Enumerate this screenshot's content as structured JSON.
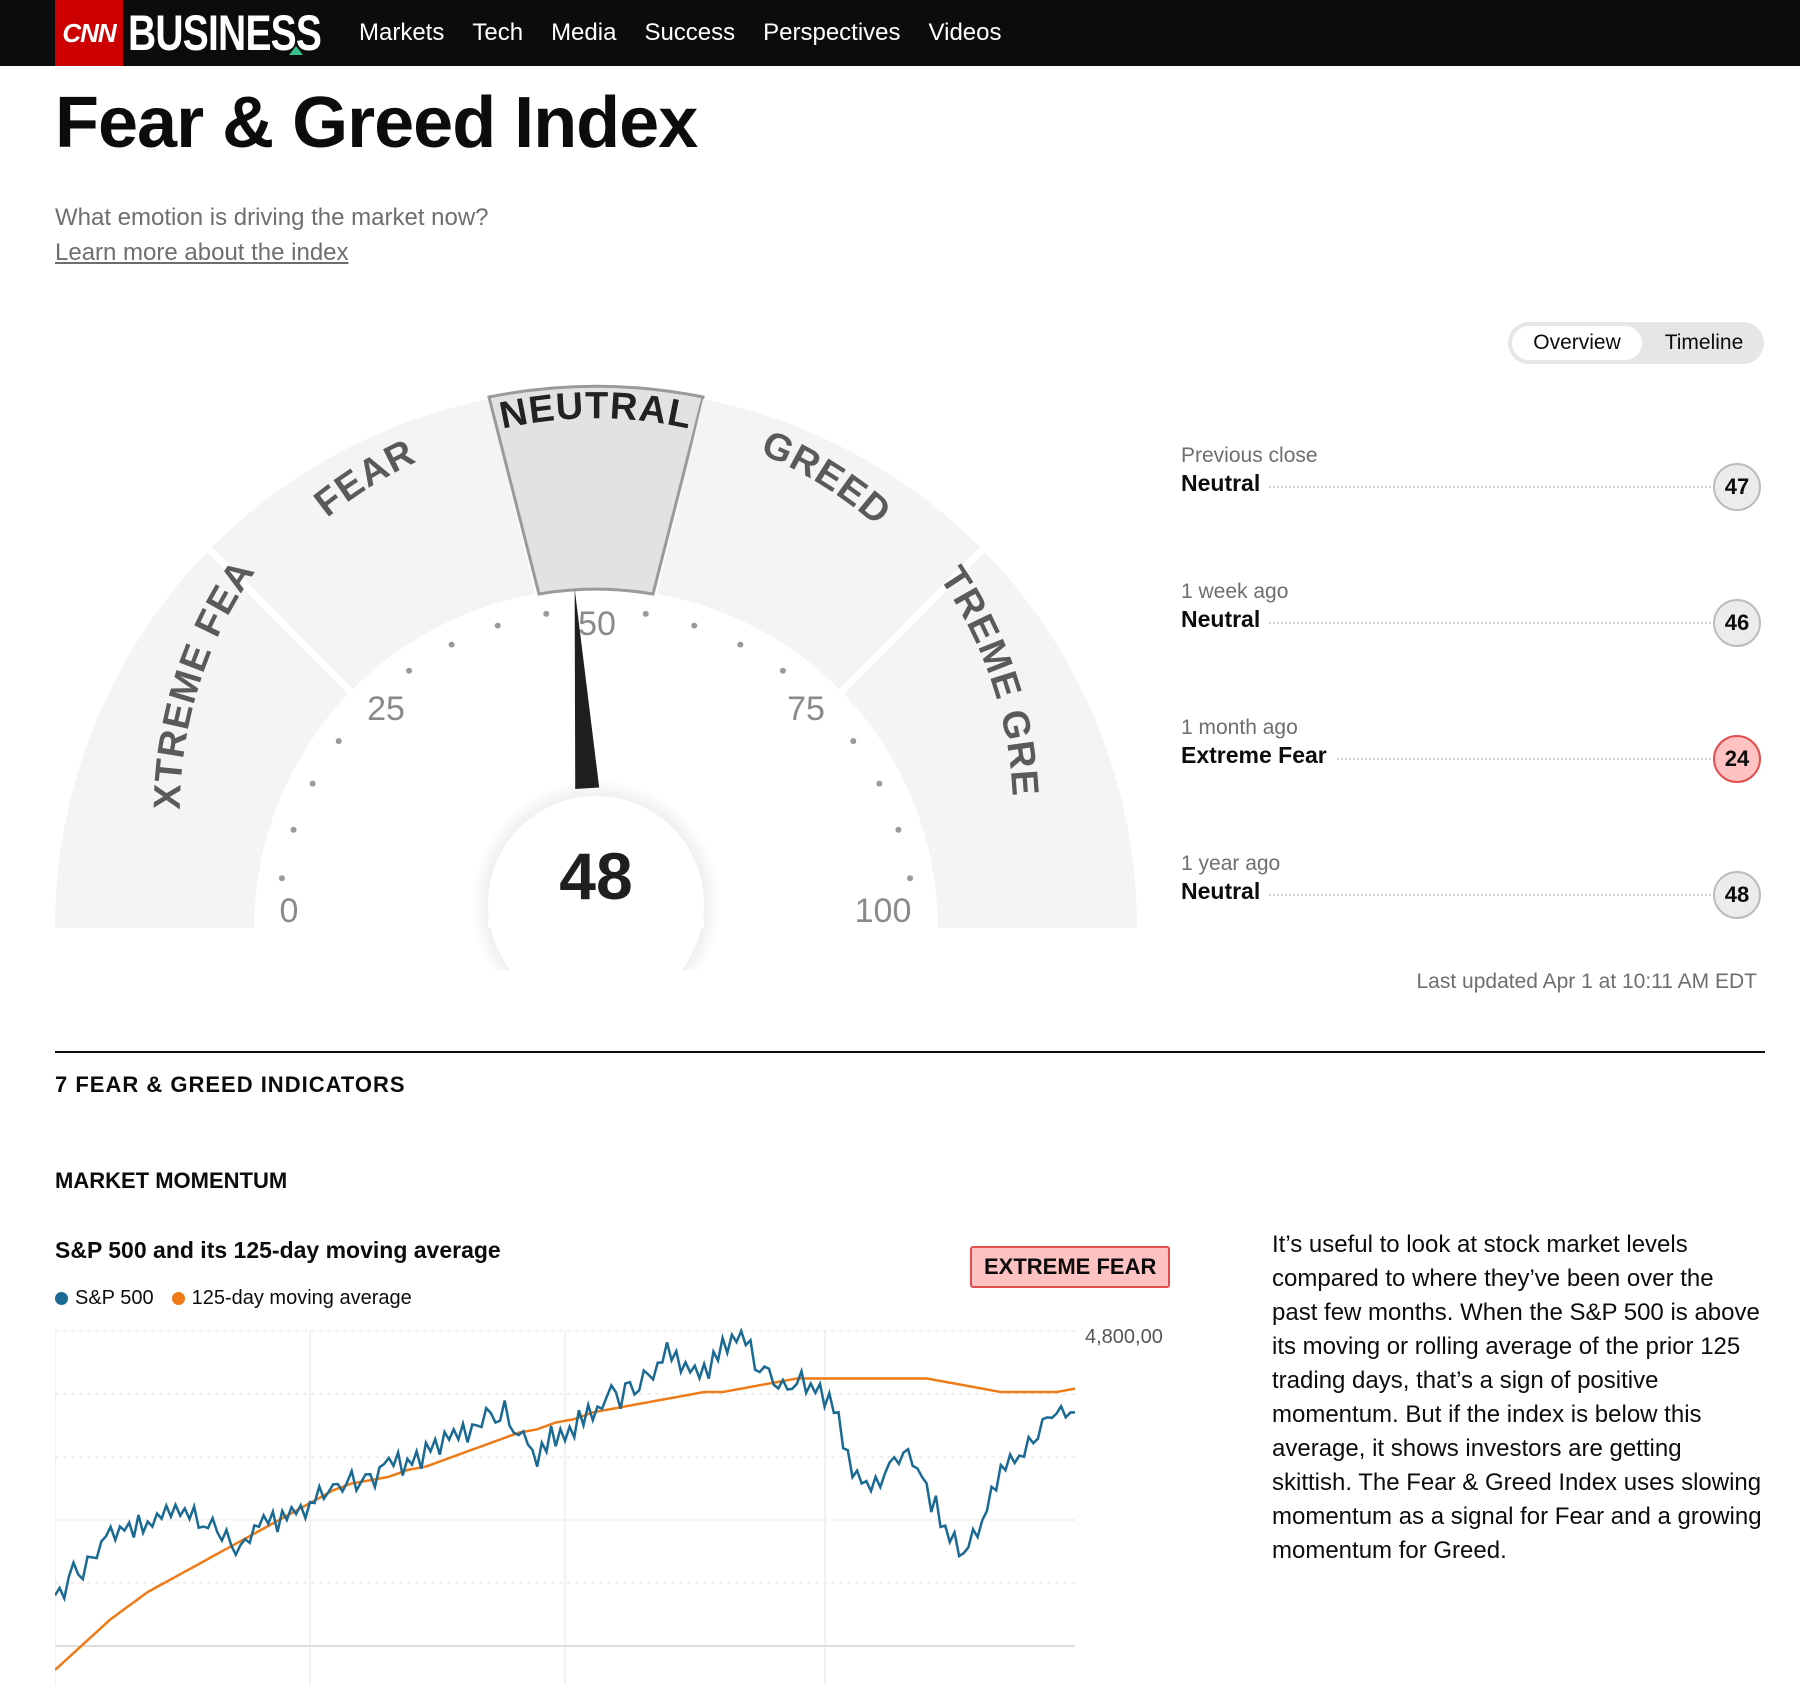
{
  "nav": {
    "logo": "CNN",
    "section": "BUSINESS",
    "links": [
      "Markets",
      "Tech",
      "Media",
      "Success",
      "Perspectives",
      "Videos"
    ]
  },
  "page": {
    "title": "Fear & Greed Index",
    "subtitle": "What emotion is driving the market now?",
    "learn_more": "Learn more about the index"
  },
  "toggle": {
    "overview": "Overview",
    "timeline": "Timeline"
  },
  "gauge": {
    "value": 48,
    "segments": [
      "EXTREME FEAR",
      "FEAR",
      "NEUTRAL",
      "GREED",
      "EXTREME GREED"
    ],
    "active_segment": "NEUTRAL",
    "ticks": [
      "0",
      "25",
      "50",
      "75",
      "100"
    ]
  },
  "history": [
    {
      "label": "Previous close",
      "rating": "Neutral",
      "value": "47"
    },
    {
      "label": "1 week ago",
      "rating": "Neutral",
      "value": "46"
    },
    {
      "label": "1 month ago",
      "rating": "Extreme Fear",
      "value": "24"
    },
    {
      "label": "1 year ago",
      "rating": "Neutral",
      "value": "48"
    }
  ],
  "last_updated": "Last updated Apr 1 at 10:11 AM EDT",
  "indicators_title": "7 FEAR & GREED INDICATORS",
  "market_momentum": {
    "title": "MARKET MOMENTUM",
    "chart_title": "S&P 500 and its 125-day moving average",
    "badge": "EXTREME FEAR",
    "description": "It’s useful to look at stock market levels compared to where they’ve been over the past few months. When the S&P 500 is above its moving or rolling average of the prior 125 trading days, that’s a sign of positive momentum. But if the index is below this average, it shows investors are getting skittish. The Fear & Greed Index uses slowing momentum as a signal for Fear and a growing momentum for Greed."
  },
  "colors": {
    "sp500": "#1a6a93",
    "moving_average": "#ee7b17",
    "extreme_fear_bg": "#ffc2c2",
    "extreme_fear_border": "#e24d4d"
  },
  "chart_data": {
    "type": "line",
    "axis_label": "4,800,00",
    "series": [
      {
        "name": "S&P 500",
        "values": [
          0.22,
          0.28,
          0.33,
          0.4,
          0.42,
          0.42,
          0.46,
          0.47,
          0.45,
          0.4,
          0.37,
          0.43,
          0.44,
          0.46,
          0.5,
          0.53,
          0.55,
          0.56,
          0.6,
          0.61,
          0.64,
          0.68,
          0.7,
          0.74,
          0.77,
          0.72,
          0.62,
          0.7,
          0.72,
          0.76,
          0.8,
          0.82,
          0.86,
          0.95,
          0.9,
          0.88,
          0.94,
          0.98,
          0.9,
          0.84,
          0.86,
          0.82,
          0.78,
          0.6,
          0.54,
          0.58,
          0.64,
          0.53,
          0.42,
          0.34,
          0.43,
          0.6,
          0.64,
          0.7,
          0.78,
          0.76
        ]
      },
      {
        "name": "125-day moving average",
        "values": [
          0.0,
          0.05,
          0.1,
          0.15,
          0.19,
          0.23,
          0.26,
          0.29,
          0.32,
          0.35,
          0.38,
          0.41,
          0.44,
          0.47,
          0.5,
          0.53,
          0.55,
          0.56,
          0.57,
          0.59,
          0.6,
          0.62,
          0.64,
          0.66,
          0.68,
          0.7,
          0.71,
          0.73,
          0.74,
          0.76,
          0.77,
          0.78,
          0.79,
          0.8,
          0.81,
          0.82,
          0.82,
          0.83,
          0.84,
          0.85,
          0.86,
          0.86,
          0.86,
          0.86,
          0.86,
          0.86,
          0.86,
          0.86,
          0.85,
          0.84,
          0.83,
          0.82,
          0.82,
          0.82,
          0.82,
          0.83
        ]
      }
    ]
  }
}
